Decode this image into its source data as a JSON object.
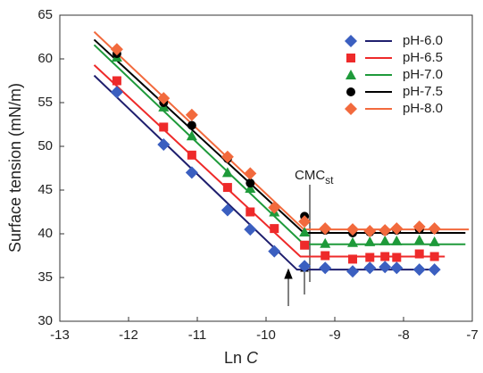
{
  "chart_data": {
    "type": "scatter",
    "xlabel": "Ln",
    "xlabel_var": "C",
    "ylabel": "Surface tension (mN/m)",
    "annotation": {
      "text": "CMC",
      "subscript": "st"
    },
    "xlim": [
      -13,
      -7
    ],
    "xticks": [
      -13,
      -12,
      -11,
      -10,
      -9,
      -8,
      -7
    ],
    "ylim": [
      30,
      65
    ],
    "yticks": [
      30,
      35,
      40,
      45,
      50,
      55,
      60,
      65
    ],
    "legend": "top-right",
    "x": [
      -12.17,
      -11.49,
      -11.08,
      -10.56,
      -10.23,
      -9.88,
      -9.44,
      -9.14,
      -8.74,
      -8.49,
      -8.27,
      -8.1,
      -7.77,
      -7.55
    ],
    "series": [
      {
        "name": "pH-6.0",
        "color": "#3b5fc0",
        "marker": "diamond",
        "line_color": "#1f1f6e",
        "values": [
          56.2,
          50.2,
          47.0,
          42.7,
          40.5,
          38.0,
          36.3,
          36.1,
          35.7,
          36.1,
          36.2,
          36.1,
          35.9,
          35.9
        ],
        "line_x": [
          -12.5,
          -9.55,
          -7.55
        ],
        "line_y": [
          58.1,
          35.9,
          35.9
        ]
      },
      {
        "name": "pH-6.5",
        "color": "#ee2a2a",
        "marker": "square",
        "line_color": "#ee2a2a",
        "values": [
          57.5,
          52.2,
          49.0,
          45.3,
          42.5,
          40.6,
          38.7,
          37.5,
          37.1,
          37.3,
          37.4,
          37.3,
          37.7,
          37.4
        ],
        "line_x": [
          -12.5,
          -9.5,
          -7.4
        ],
        "line_y": [
          59.3,
          37.4,
          37.4
        ]
      },
      {
        "name": "pH-7.0",
        "color": "#1e9a3a",
        "marker": "triangle",
        "line_color": "#1e9a3a",
        "values": [
          60.2,
          54.5,
          51.2,
          47.0,
          45.2,
          42.5,
          40.2,
          38.9,
          39.0,
          39.1,
          39.2,
          39.2,
          39.3,
          39.1
        ],
        "line_x": [
          -12.5,
          -9.45,
          -7.1
        ],
        "line_y": [
          61.6,
          38.8,
          38.8
        ]
      },
      {
        "name": "pH-7.5",
        "color": "#000000",
        "marker": "circle",
        "line_color": "#000000",
        "values": [
          60.6,
          55.0,
          52.4,
          48.6,
          45.8,
          43.0,
          42.0,
          40.4,
          40.1,
          40.2,
          40.3,
          40.4,
          40.5,
          40.5
        ],
        "line_x": [
          -12.5,
          -9.45,
          -7.1
        ],
        "line_y": [
          62.2,
          40.1,
          40.1
        ]
      },
      {
        "name": "pH-8.0",
        "color": "#f26a3d",
        "marker": "diamond",
        "line_color": "#f26a3d",
        "values": [
          61.1,
          55.5,
          53.6,
          48.8,
          46.9,
          43.0,
          41.4,
          40.6,
          40.5,
          40.3,
          40.4,
          40.6,
          40.8,
          40.6
        ],
        "line_x": [
          -12.5,
          -9.45,
          -7.05
        ],
        "line_y": [
          63.1,
          40.5,
          40.5
        ]
      }
    ]
  }
}
